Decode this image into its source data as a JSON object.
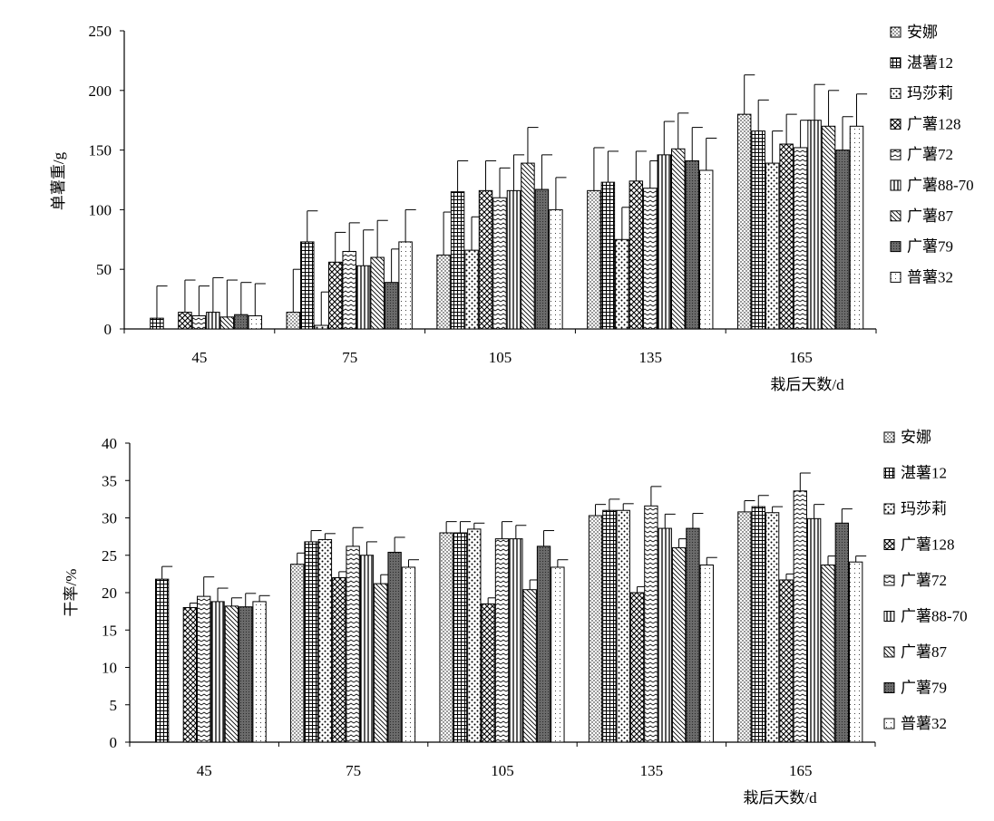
{
  "chart_data": [
    {
      "type": "bar",
      "ylabel": "单薯重/g",
      "xlabel": "栽后天数/d",
      "categories": [
        "45",
        "75",
        "105",
        "135",
        "165"
      ],
      "ylim": [
        0,
        250
      ],
      "yticks": [
        0,
        50,
        100,
        150,
        200,
        250
      ],
      "legend_position": "right",
      "error_bars": true,
      "series": [
        {
          "name": "安娜",
          "pattern": "dots",
          "values": [
            0,
            14,
            62,
            116,
            180
          ],
          "errors": [
            0,
            36,
            36,
            36,
            33
          ]
        },
        {
          "name": "湛薯12",
          "pattern": "grid",
          "values": [
            9,
            73,
            115,
            123,
            166
          ],
          "errors": [
            27,
            26,
            26,
            26,
            26
          ]
        },
        {
          "name": "玛莎莉",
          "pattern": "dots-large",
          "values": [
            0,
            3,
            66,
            75,
            139
          ],
          "errors": [
            0,
            28,
            28,
            27,
            27
          ]
        },
        {
          "name": "广薯128",
          "pattern": "diamond",
          "values": [
            14,
            56,
            116,
            124,
            155
          ],
          "errors": [
            27,
            25,
            25,
            25,
            25
          ]
        },
        {
          "name": "广薯72",
          "pattern": "zigzag",
          "values": [
            11,
            65,
            110,
            118,
            152
          ],
          "errors": [
            25,
            24,
            25,
            23,
            23
          ]
        },
        {
          "name": "广薯88-70",
          "pattern": "vertical",
          "values": [
            14,
            53,
            116,
            146,
            175
          ],
          "errors": [
            29,
            30,
            30,
            28,
            30
          ]
        },
        {
          "name": "广薯87",
          "pattern": "diagonal",
          "values": [
            10,
            60,
            139,
            151,
            170
          ],
          "errors": [
            31,
            31,
            30,
            30,
            30
          ]
        },
        {
          "name": "广薯79",
          "pattern": "dark",
          "values": [
            12,
            39,
            117,
            141,
            150
          ],
          "errors": [
            27,
            28,
            29,
            28,
            28
          ]
        },
        {
          "name": "普薯32",
          "pattern": "light-dots",
          "values": [
            11,
            73,
            100,
            133,
            170
          ],
          "errors": [
            27,
            27,
            27,
            27,
            27
          ]
        }
      ]
    },
    {
      "type": "bar",
      "ylabel": "干率/%",
      "xlabel": "栽后天数/d",
      "categories": [
        "45",
        "75",
        "105",
        "135",
        "165"
      ],
      "ylim": [
        0,
        40
      ],
      "yticks": [
        0,
        5,
        10,
        15,
        20,
        25,
        30,
        35,
        40
      ],
      "legend_position": "right",
      "error_bars": true,
      "series": [
        {
          "name": "安娜",
          "pattern": "dots",
          "values": [
            0,
            23.8,
            28.0,
            30.3,
            30.8
          ],
          "errors": [
            0,
            1.5,
            1.5,
            1.5,
            1.5
          ]
        },
        {
          "name": "湛薯12",
          "pattern": "grid",
          "values": [
            21.8,
            26.8,
            28.0,
            31.0,
            31.5
          ],
          "errors": [
            1.7,
            1.5,
            1.5,
            1.5,
            1.5
          ]
        },
        {
          "name": "玛莎莉",
          "pattern": "dots-large",
          "values": [
            0,
            27.1,
            28.5,
            31.0,
            30.7
          ],
          "errors": [
            0,
            0.8,
            0.8,
            0.9,
            0.8
          ]
        },
        {
          "name": "广薯128",
          "pattern": "diamond",
          "values": [
            18.0,
            22.0,
            18.5,
            20.0,
            21.7
          ],
          "errors": [
            0.6,
            0.8,
            0.8,
            0.8,
            0.8
          ]
        },
        {
          "name": "广薯72",
          "pattern": "zigzag",
          "values": [
            19.5,
            26.2,
            27.2,
            31.6,
            33.6
          ],
          "errors": [
            2.6,
            2.5,
            2.3,
            2.6,
            2.4
          ]
        },
        {
          "name": "广薯88-70",
          "pattern": "vertical",
          "values": [
            18.8,
            25.0,
            27.2,
            28.6,
            29.9
          ],
          "errors": [
            1.8,
            1.8,
            1.8,
            1.9,
            1.9
          ]
        },
        {
          "name": "广薯87",
          "pattern": "diagonal",
          "values": [
            18.2,
            21.2,
            20.4,
            26.0,
            23.7
          ],
          "errors": [
            1.1,
            1.2,
            1.3,
            1.2,
            1.2
          ]
        },
        {
          "name": "广薯79",
          "pattern": "dark",
          "values": [
            18.1,
            25.4,
            26.2,
            28.6,
            29.3
          ],
          "errors": [
            1.8,
            2.0,
            2.1,
            2.0,
            1.9
          ]
        },
        {
          "name": "普薯32",
          "pattern": "light-dots",
          "values": [
            18.8,
            23.4,
            23.4,
            23.7,
            24.1
          ],
          "errors": [
            0.8,
            1.0,
            1.0,
            1.0,
            0.8
          ]
        }
      ]
    }
  ]
}
